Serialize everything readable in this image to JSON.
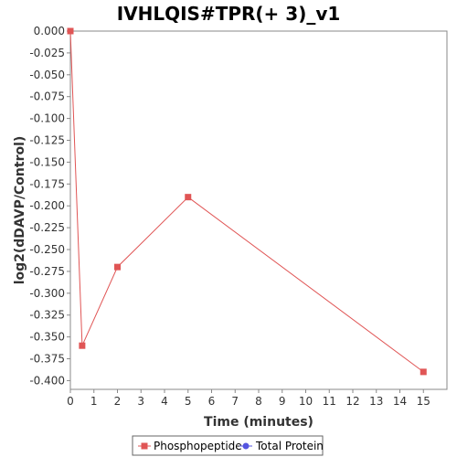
{
  "chart_data": {
    "type": "line",
    "title": "IVHLQIS#TPR(+ 3)_v1",
    "xlabel": "Time (minutes)",
    "ylabel": "log2(dDAVP/Control)",
    "xlim": [
      0,
      16
    ],
    "ylim": [
      -0.41,
      0.0
    ],
    "xticks": [
      0,
      1,
      2,
      3,
      4,
      5,
      6,
      7,
      8,
      9,
      10,
      11,
      12,
      13,
      14,
      15
    ],
    "yticks": [
      0.0,
      -0.025,
      -0.05,
      -0.075,
      -0.1,
      -0.125,
      -0.15,
      -0.175,
      -0.2,
      -0.225,
      -0.25,
      -0.275,
      -0.3,
      -0.325,
      -0.35,
      -0.375,
      -0.4
    ],
    "grid": false,
    "legend_position": "bottom",
    "series": [
      {
        "name": "Phosphopeptide",
        "color": "#e05555",
        "marker": "square",
        "x": [
          0,
          0.5,
          2,
          5,
          15
        ],
        "y": [
          0.0,
          -0.36,
          -0.27,
          -0.19,
          -0.39
        ]
      },
      {
        "name": "Total Protein",
        "color": "#5555e0",
        "marker": "circle",
        "x": [],
        "y": []
      }
    ]
  }
}
